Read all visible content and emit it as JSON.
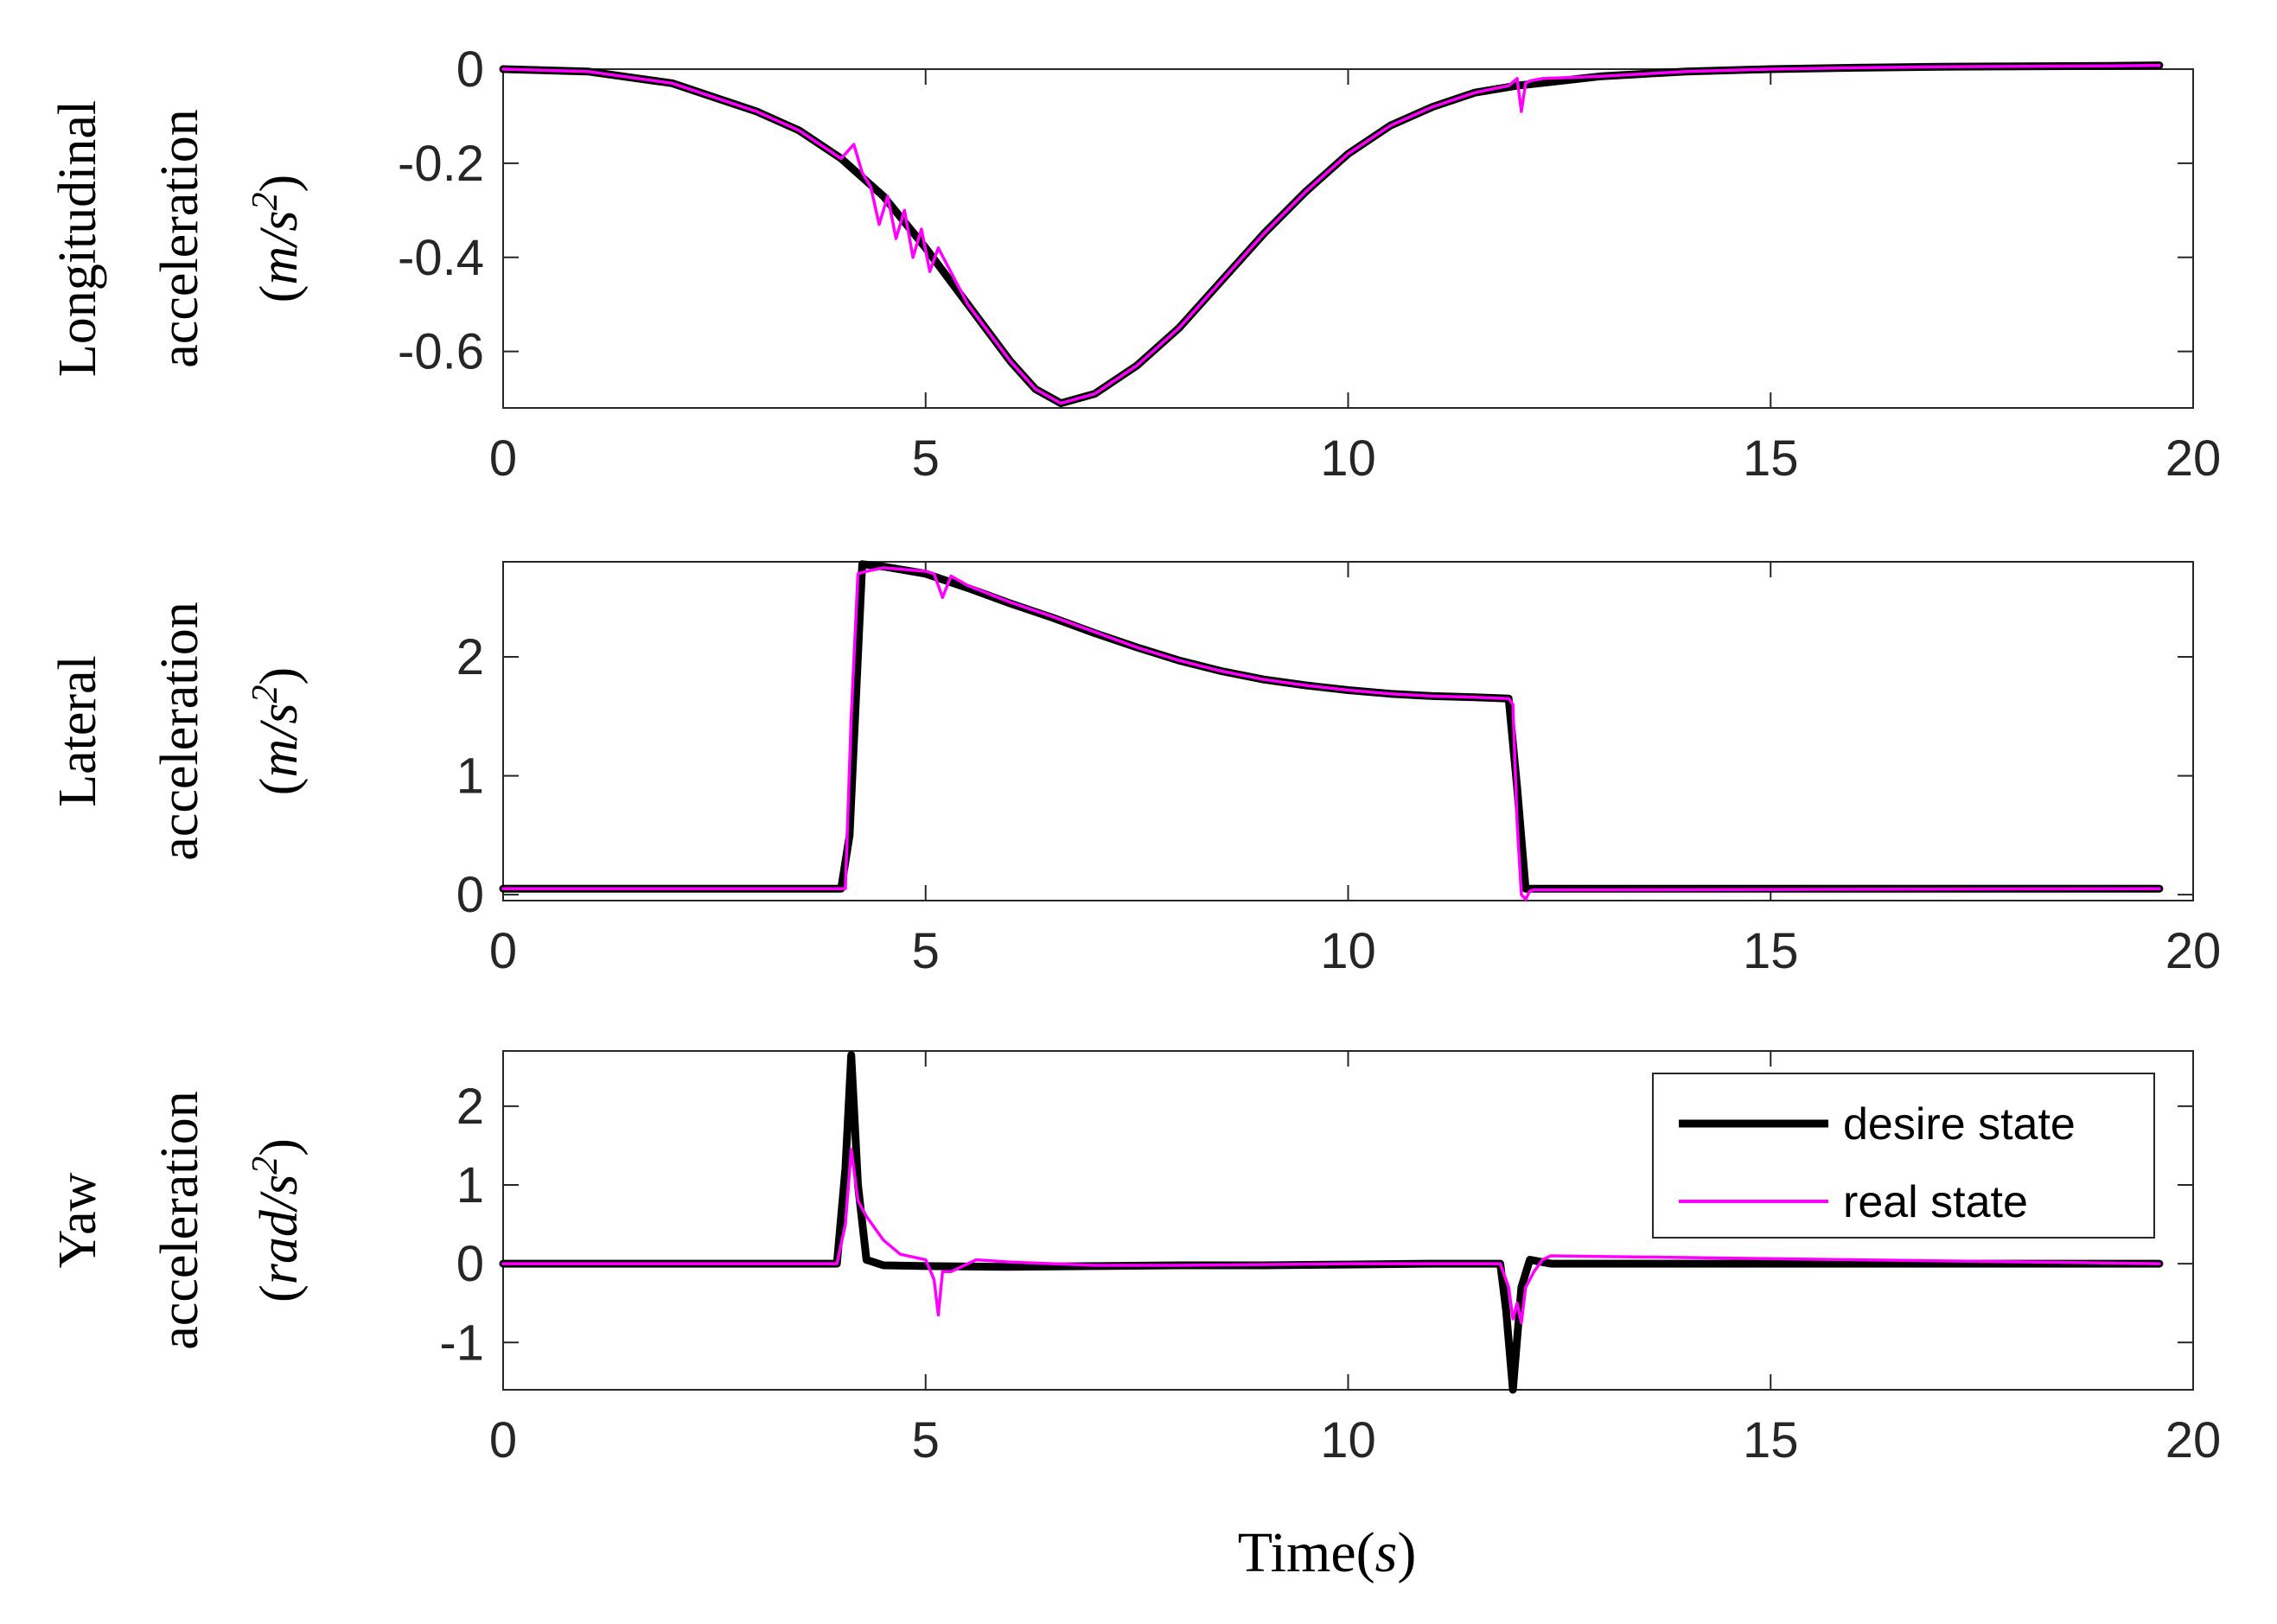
{
  "figure": {
    "xlabel": "Time(s)",
    "xlabel_prefix": "Time(",
    "xlabel_unit": "s",
    "xlabel_suffix": ")",
    "legend": {
      "desire": "desire state",
      "real": "real state",
      "placement": "inside-top-right of bottom panel"
    },
    "colors": {
      "desire": "#000000",
      "real": "#ff00ff",
      "axis": "#262626"
    },
    "panels": [
      {
        "id": "longitudinal",
        "ylabel_line1": "Longitudinal",
        "ylabel_line2": "acceleration",
        "ylabel_line3": "(m/s²)",
        "unit_open": "(",
        "unit_num": "m/s",
        "unit_sup": "2",
        "unit_close": ")"
      },
      {
        "id": "lateral",
        "ylabel_line1": "Lateral",
        "ylabel_line2": "acceleration",
        "ylabel_line3": "(m/s²)",
        "unit_open": "(",
        "unit_num": "m/s",
        "unit_sup": "2",
        "unit_close": ")"
      },
      {
        "id": "yaw",
        "ylabel_line1": "Yaw",
        "ylabel_line2": "acceleration",
        "ylabel_line3": "(rad/s²)",
        "unit_open": "(",
        "unit_num": "rad/s",
        "unit_sup": "2",
        "unit_close": ")"
      }
    ]
  },
  "chart_data": [
    {
      "type": "line",
      "xlabel": "",
      "ylabel": "Longitudinal acceleration (m/s²)",
      "xlim": [
        0,
        20
      ],
      "ylim": [
        -0.72,
        0
      ],
      "xticks": [
        0,
        5,
        10,
        15,
        20
      ],
      "xtick_labels": [
        "0",
        "5",
        "10",
        "15",
        "20"
      ],
      "yticks": [
        0,
        -0.2,
        -0.4,
        -0.6
      ],
      "ytick_labels": [
        "0",
        "-0.2",
        "-0.4",
        "-0.6"
      ],
      "grid": false,
      "series": [
        {
          "name": "desire state",
          "x": [
            0,
            1,
            2,
            2.5,
            3,
            3.5,
            4,
            4.5,
            5,
            5.5,
            6,
            6.3,
            6.6,
            7,
            7.5,
            8,
            8.5,
            9,
            9.5,
            10,
            10.5,
            11,
            11.5,
            12,
            13,
            14,
            15,
            16,
            17,
            18,
            19,
            19.6
          ],
          "y": [
            0,
            -0.005,
            -0.03,
            -0.06,
            -0.09,
            -0.13,
            -0.19,
            -0.27,
            -0.38,
            -0.5,
            -0.62,
            -0.68,
            -0.71,
            -0.69,
            -0.63,
            -0.55,
            -0.45,
            -0.35,
            -0.26,
            -0.18,
            -0.12,
            -0.08,
            -0.05,
            -0.035,
            -0.015,
            -0.005,
            0,
            0.003,
            0.005,
            0.006,
            0.007,
            0.008
          ]
        },
        {
          "name": "real state",
          "x": [
            0,
            1,
            2,
            2.5,
            3,
            3.5,
            4,
            4.15,
            4.25,
            4.35,
            4.45,
            4.55,
            4.65,
            4.75,
            4.85,
            4.95,
            5.05,
            5.15,
            5.5,
            6,
            6.3,
            6.6,
            7,
            7.5,
            8,
            8.5,
            9,
            9.5,
            10,
            10.5,
            11,
            11.5,
            11.9,
            12.0,
            12.05,
            12.1,
            12.15,
            12.3,
            13,
            14,
            15,
            16,
            17,
            18,
            19,
            19.6
          ],
          "y": [
            0,
            -0.005,
            -0.03,
            -0.06,
            -0.09,
            -0.13,
            -0.19,
            -0.16,
            -0.22,
            -0.25,
            -0.33,
            -0.27,
            -0.36,
            -0.3,
            -0.4,
            -0.34,
            -0.43,
            -0.38,
            -0.5,
            -0.62,
            -0.68,
            -0.71,
            -0.69,
            -0.63,
            -0.55,
            -0.45,
            -0.35,
            -0.26,
            -0.18,
            -0.12,
            -0.08,
            -0.05,
            -0.035,
            -0.02,
            -0.09,
            -0.03,
            -0.025,
            -0.02,
            -0.015,
            -0.005,
            0,
            0.003,
            0.005,
            0.006,
            0.007,
            0.008
          ]
        }
      ]
    },
    {
      "type": "line",
      "xlabel": "",
      "ylabel": "Lateral acceleration (m/s²)",
      "xlim": [
        0,
        20
      ],
      "ylim": [
        -0.05,
        2.8
      ],
      "xticks": [
        0,
        5,
        10,
        15,
        20
      ],
      "xtick_labels": [
        "0",
        "5",
        "10",
        "15",
        "20"
      ],
      "yticks": [
        0,
        1,
        2
      ],
      "ytick_labels": [
        "0",
        "1",
        "2"
      ],
      "grid": false,
      "series": [
        {
          "name": "desire state",
          "x": [
            0,
            4.0,
            4.1,
            4.25,
            4.5,
            5,
            5.5,
            6,
            6.5,
            7,
            7.5,
            8,
            8.5,
            9,
            9.5,
            10,
            10.5,
            11,
            11.5,
            11.9,
            12.0,
            12.1,
            19.6
          ],
          "y": [
            0.05,
            0.05,
            0.5,
            2.78,
            2.76,
            2.7,
            2.58,
            2.45,
            2.33,
            2.2,
            2.08,
            1.97,
            1.88,
            1.81,
            1.76,
            1.72,
            1.69,
            1.67,
            1.66,
            1.65,
            0.9,
            0.05,
            0.05
          ]
        },
        {
          "name": "real state",
          "x": [
            0,
            4.0,
            4.05,
            4.12,
            4.2,
            4.3,
            4.5,
            5,
            5.1,
            5.2,
            5.3,
            5.5,
            6,
            6.5,
            7,
            7.5,
            8,
            8.5,
            9,
            9.5,
            10,
            10.5,
            11,
            11.5,
            11.9,
            11.95,
            12.0,
            12.05,
            12.1,
            12.15,
            12.2,
            19.6
          ],
          "y": [
            0.05,
            0.05,
            0.05,
            1.5,
            2.7,
            2.72,
            2.75,
            2.72,
            2.7,
            2.5,
            2.68,
            2.6,
            2.46,
            2.34,
            2.21,
            2.08,
            1.97,
            1.88,
            1.81,
            1.76,
            1.72,
            1.69,
            1.67,
            1.66,
            1.65,
            1.6,
            0.6,
            0.0,
            -0.04,
            0.03,
            0.04,
            0.05
          ]
        }
      ]
    },
    {
      "type": "line",
      "xlabel": "Time(s)",
      "ylabel": "Yaw acceleration (rad/s²)",
      "xlim": [
        0,
        20
      ],
      "ylim": [
        -1.6,
        2.7
      ],
      "xticks": [
        0,
        5,
        10,
        15,
        20
      ],
      "xtick_labels": [
        "0",
        "5",
        "10",
        "15",
        "20"
      ],
      "yticks": [
        2,
        1,
        0,
        -1
      ],
      "ytick_labels": [
        "2",
        "1",
        "0",
        "-1"
      ],
      "grid": false,
      "series": [
        {
          "name": "desire state",
          "x": [
            0,
            3.95,
            4.05,
            4.12,
            4.2,
            4.3,
            4.5,
            5,
            6,
            7,
            8,
            9,
            10,
            11,
            11.8,
            11.87,
            11.95,
            12.05,
            12.15,
            12.4,
            19.6
          ],
          "y": [
            0,
            0,
            1.2,
            2.65,
            1.0,
            0.05,
            -0.02,
            -0.03,
            -0.04,
            -0.03,
            -0.02,
            -0.02,
            -0.01,
            0,
            0,
            -0.6,
            -1.6,
            -0.3,
            0.05,
            0,
            0
          ]
        },
        {
          "name": "real state",
          "x": [
            0,
            3.95,
            4.05,
            4.12,
            4.2,
            4.3,
            4.5,
            4.7,
            5.0,
            5.1,
            5.15,
            5.2,
            5.3,
            5.6,
            6,
            7,
            8,
            9,
            10,
            11,
            11.8,
            11.9,
            11.95,
            12.0,
            12.05,
            12.1,
            12.2,
            12.3,
            12.4,
            19.6
          ],
          "y": [
            0,
            0,
            0.5,
            1.45,
            0.8,
            0.6,
            0.3,
            0.12,
            0.05,
            -0.2,
            -0.65,
            -0.1,
            -0.1,
            0.05,
            0.02,
            -0.02,
            -0.02,
            -0.01,
            0,
            0,
            0,
            -0.3,
            -0.7,
            -0.5,
            -0.75,
            -0.3,
            -0.1,
            0.05,
            0.1,
            0
          ]
        }
      ]
    }
  ]
}
